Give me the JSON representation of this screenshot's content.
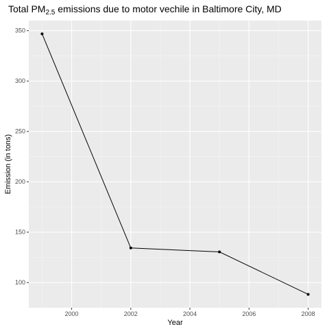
{
  "chart_data": {
    "type": "line",
    "title": {
      "prefix": "Total PM",
      "subscript": "2.5",
      "suffix": " emissions due to motor vechile in Baltimore City, MD"
    },
    "xlabel": "Year",
    "ylabel": "Emission (in tons)",
    "x": [
      1999,
      2002,
      2005,
      2008
    ],
    "y": [
      346.82,
      134.31,
      130.43,
      88.28
    ],
    "xlim": [
      1998.55,
      2008.45
    ],
    "ylim": [
      75.0,
      360.0
    ],
    "xticks": [
      2000,
      2002,
      2004,
      2006,
      2008
    ],
    "yticks": [
      100,
      150,
      200,
      250,
      300,
      350
    ],
    "grid": true,
    "legend": "none",
    "colors": {
      "panel": "#ebebeb",
      "grid_major": "#ffffff",
      "grid_minor": "#f5f5f5",
      "line": "#000000",
      "point": "#000000",
      "tick": "#333333"
    }
  }
}
